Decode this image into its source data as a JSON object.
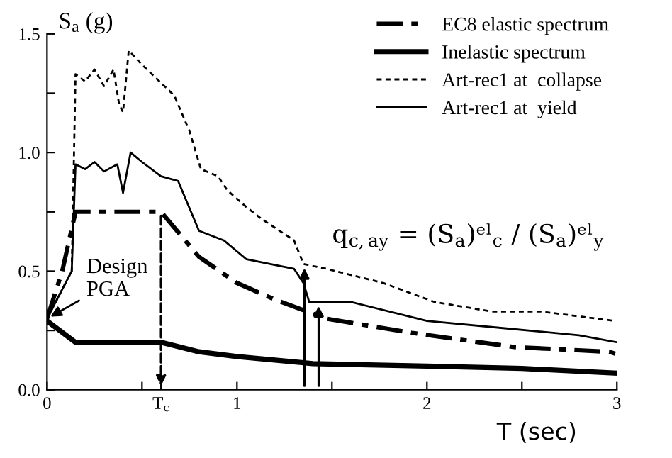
{
  "chart_data": {
    "type": "line",
    "ylabel": "S$_{a}$ (g)",
    "xlabel": "T (sec)",
    "xlim": [
      0,
      3
    ],
    "xticks": [
      0,
      {
        "value": 0.5,
        "label": null
      },
      {
        "value": 0.6,
        "label": "T$_{c}$"
      },
      1,
      {
        "value": 1.5,
        "label": null
      },
      2,
      {
        "value": 2.5,
        "label": null
      },
      3
    ],
    "ylim": [
      0,
      1.5
    ],
    "yticks": [
      {
        "value": 0,
        "label": "0.0"
      },
      {
        "value": 0.25,
        "label": null
      },
      {
        "value": 0.5,
        "label": "0.5"
      },
      {
        "value": 0.75,
        "label": null
      },
      {
        "value": 1.0,
        "label": "1.0"
      },
      {
        "value": 1.25,
        "label": null
      },
      1.5
    ],
    "legend": "top right",
    "grid": false,
    "series": [
      {
        "name": "EC8 elastic spectrum",
        "color": "#000000",
        "line_style": "dashdot",
        "x": [
          0,
          0.08,
          0.15,
          0.6,
          0.8,
          1.0,
          1.2,
          1.47,
          1.92,
          2.46,
          2.96,
          3.0
        ],
        "values": [
          0.3,
          0.5,
          0.75,
          0.75,
          0.56,
          0.45,
          0.38,
          0.3,
          0.24,
          0.18,
          0.16,
          0.15
        ]
      },
      {
        "name": "Inelastic spectrum",
        "color": "#000000",
        "line_style": "solid",
        "x": [
          0,
          0.15,
          0.6,
          0.8,
          1.0,
          1.4,
          2.0,
          2.5,
          3.0
        ],
        "values": [
          0.29,
          0.2,
          0.2,
          0.16,
          0.14,
          0.11,
          0.1,
          0.09,
          0.07
        ]
      },
      {
        "name": "Art-rec1 at  collapse",
        "color": "#000000",
        "line_style": "dotted",
        "x": [
          0,
          0.13,
          0.15,
          0.2,
          0.25,
          0.3,
          0.35,
          0.38,
          0.4,
          0.43,
          0.5,
          0.67,
          0.75,
          0.81,
          0.9,
          0.95,
          1.05,
          1.13,
          1.3,
          1.35,
          1.47,
          1.77,
          2.04,
          2.34,
          2.6,
          2.99
        ],
        "values": [
          0.3,
          0.5,
          1.33,
          1.3,
          1.35,
          1.28,
          1.35,
          1.2,
          1.17,
          1.43,
          1.37,
          1.24,
          1.09,
          0.93,
          0.9,
          0.84,
          0.77,
          0.72,
          0.63,
          0.53,
          0.51,
          0.45,
          0.37,
          0.33,
          0.33,
          0.29
        ]
      },
      {
        "name": "Art-rec1 at  yield",
        "color": "#000000",
        "line_style": "solid",
        "x": [
          0,
          0.13,
          0.15,
          0.2,
          0.25,
          0.3,
          0.37,
          0.4,
          0.44,
          0.5,
          0.6,
          0.69,
          0.8,
          0.93,
          1.05,
          1.3,
          1.35,
          1.38,
          1.43,
          1.6,
          2.0,
          2.4,
          2.8,
          3.0
        ],
        "values": [
          0.3,
          0.5,
          0.95,
          0.93,
          0.96,
          0.92,
          0.95,
          0.83,
          1.0,
          0.96,
          0.9,
          0.88,
          0.67,
          0.63,
          0.55,
          0.51,
          0.45,
          0.37,
          0.37,
          0.37,
          0.29,
          0.26,
          0.23,
          0.2
        ]
      }
    ],
    "annotations": [
      {
        "text": "Design\nPGA",
        "x": 0,
        "y": 0.3
      },
      "q$_{c,ay}$ = (S$_{a}$)ᵉˡ$_{c}$ / (S$_{a}$)ᵉˡ$_{y}$"
    ]
  }
}
